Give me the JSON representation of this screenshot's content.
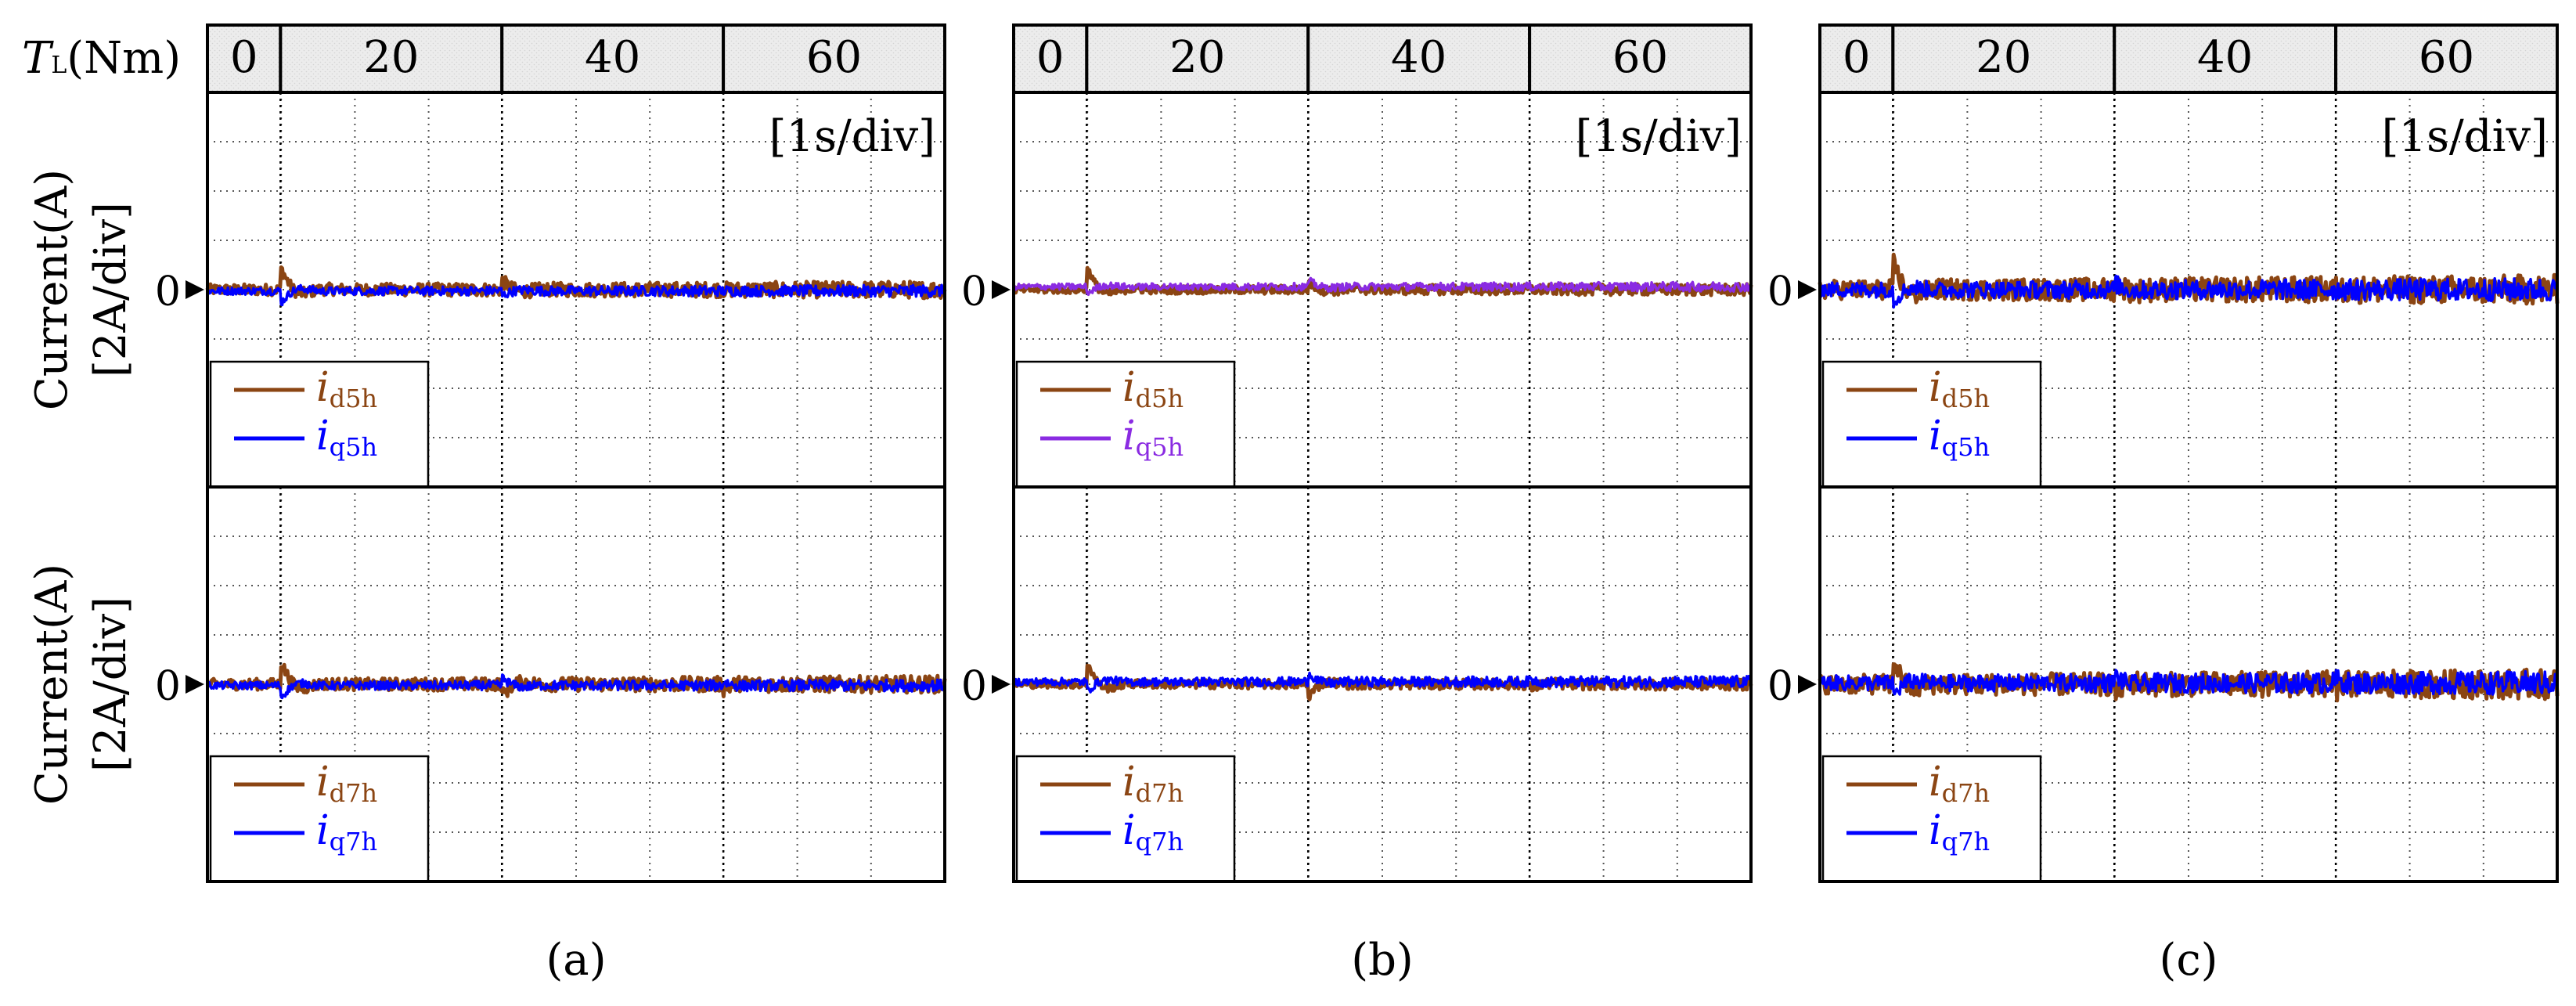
{
  "figure": {
    "torque_label_main": "T",
    "torque_label_sub": "L",
    "torque_label_unit": "(Nm)",
    "time_div_label": "[1s/div]",
    "ylabel_line1": "Current(A)",
    "ylabel_line2": "[2A/div]",
    "zero_label": "0"
  },
  "colors": {
    "d_axis": "#8B4513",
    "q_axis": "#0000FF",
    "q_axis_variant_b": "#8A2BE2",
    "torque_band_fill": "#ececec"
  },
  "chart_data": [
    {
      "type": "line",
      "panel": "(a)",
      "title": "(a)",
      "torque_segments": [
        {
          "label": "0",
          "t_start": 0.0,
          "t_end": 0.33
        },
        {
          "label": "20",
          "t_start": 0.33,
          "t_end": 1.33
        },
        {
          "label": "40",
          "t_start": 1.33,
          "t_end": 2.33
        },
        {
          "label": "60",
          "t_start": 2.33,
          "t_end": 3.33
        }
      ],
      "x_unit": "1s/div",
      "x_range": [
        0,
        3.33
      ],
      "subplots": [
        {
          "ylabel": "Current(A) [2A/div]",
          "ylim": [
            -8,
            8
          ],
          "legend": [
            "i_d5h",
            "i_q5h"
          ],
          "series": [
            {
              "name": "d5h",
              "legend_sub": "d5h",
              "color_key": "d_axis",
              "steady_value": 0.0,
              "events": [
                [
                  0.33,
                  0.9
                ],
                [
                  1.33,
                  0.35
                ]
              ],
              "ripple": 0.22
            },
            {
              "name": "q5h",
              "legend_sub": "q5h",
              "color_key": "q_axis",
              "steady_value": -0.05,
              "events": [
                [
                  0.33,
                  -0.5
                ],
                [
                  1.33,
                  -0.2
                ]
              ],
              "ripple": 0.15
            }
          ]
        },
        {
          "ylabel": "Current(A) [2A/div]",
          "ylim": [
            -8,
            8
          ],
          "legend": [
            "i_d7h",
            "i_q7h"
          ],
          "series": [
            {
              "name": "d7h",
              "legend_sub": "d7h",
              "color_key": "d_axis",
              "steady_value": 0.0,
              "events": [
                [
                  0.33,
                  0.9
                ],
                [
                  1.33,
                  -0.45
                ],
                [
                  2.33,
                  -0.2
                ]
              ],
              "ripple": 0.22
            },
            {
              "name": "q7h",
              "legend_sub": "q7h",
              "color_key": "q_axis",
              "steady_value": -0.05,
              "events": [
                [
                  0.33,
                  -0.5
                ],
                [
                  1.33,
                  0.3
                ],
                [
                  2.33,
                  0.15
                ]
              ],
              "ripple": 0.15
            }
          ]
        }
      ]
    },
    {
      "type": "line",
      "panel": "(b)",
      "title": "(b)",
      "torque_segments": [
        {
          "label": "0",
          "t_start": 0.0,
          "t_end": 0.33
        },
        {
          "label": "20",
          "t_start": 0.33,
          "t_end": 1.33
        },
        {
          "label": "40",
          "t_start": 1.33,
          "t_end": 2.33
        },
        {
          "label": "60",
          "t_start": 2.33,
          "t_end": 3.33
        }
      ],
      "x_unit": "1s/div",
      "x_range": [
        0,
        3.33
      ],
      "subplots": [
        {
          "ylabel": "",
          "ylim": [
            -8,
            8
          ],
          "legend": [
            "i_d5h",
            "i_q5h"
          ],
          "series": [
            {
              "name": "d5h",
              "legend_sub": "d5h",
              "color_key": "d_axis",
              "steady_value": 0.0,
              "events": [
                [
                  0.33,
                  0.9
                ],
                [
                  1.33,
                  0.3
                ]
              ],
              "ripple": 0.15
            },
            {
              "name": "q5h",
              "legend_sub": "q5h",
              "color_key": "q_axis_variant_b",
              "steady_value": 0.12,
              "events": [
                [
                  0.33,
                  -0.3
                ],
                [
                  1.33,
                  0.25
                ]
              ],
              "ripple": 0.12
            }
          ]
        },
        {
          "ylabel": "",
          "ylim": [
            -8,
            8
          ],
          "legend": [
            "i_d7h",
            "i_q7h"
          ],
          "series": [
            {
              "name": "d7h",
              "legend_sub": "d7h",
              "color_key": "d_axis",
              "steady_value": 0.0,
              "events": [
                [
                  0.33,
                  0.9
                ],
                [
                  1.33,
                  -0.5
                ],
                [
                  2.33,
                  -0.2
                ]
              ],
              "ripple": 0.15
            },
            {
              "name": "q7h",
              "legend_sub": "q7h",
              "color_key": "q_axis",
              "steady_value": 0.1,
              "events": [
                [
                  0.33,
                  -0.4
                ],
                [
                  1.33,
                  0.35
                ],
                [
                  2.33,
                  0.1
                ]
              ],
              "ripple": 0.15
            }
          ]
        }
      ]
    },
    {
      "type": "line",
      "panel": "(c)",
      "title": "(c)",
      "torque_segments": [
        {
          "label": "0",
          "t_start": 0.0,
          "t_end": 0.33
        },
        {
          "label": "20",
          "t_start": 0.33,
          "t_end": 1.33
        },
        {
          "label": "40",
          "t_start": 1.33,
          "t_end": 2.33
        },
        {
          "label": "60",
          "t_start": 2.33,
          "t_end": 3.33
        }
      ],
      "x_unit": "1s/div",
      "x_range": [
        0,
        3.33
      ],
      "subplots": [
        {
          "ylabel": "",
          "ylim": [
            -8,
            8
          ],
          "legend": [
            "i_d5h",
            "i_q5h"
          ],
          "series": [
            {
              "name": "d5h",
              "legend_sub": "d5h",
              "color_key": "d_axis",
              "steady_value": 0.0,
              "events": [
                [
                  0.33,
                  1.1
                ],
                [
                  1.33,
                  0.3
                ]
              ],
              "ripple": 0.38
            },
            {
              "name": "q5h",
              "legend_sub": "q5h",
              "color_key": "q_axis",
              "steady_value": 0.0,
              "events": [
                [
                  0.33,
                  -0.5
                ],
                [
                  1.33,
                  0.25
                ]
              ],
              "ripple": 0.3
            }
          ]
        },
        {
          "ylabel": "",
          "ylim": [
            -8,
            8
          ],
          "legend": [
            "i_d7h",
            "i_q7h"
          ],
          "series": [
            {
              "name": "d7h",
              "legend_sub": "d7h",
              "color_key": "d_axis",
              "steady_value": 0.0,
              "events": [
                [
                  0.33,
                  1.0
                ],
                [
                  1.33,
                  -0.4
                ],
                [
                  2.33,
                  -0.2
                ]
              ],
              "ripple": 0.38
            },
            {
              "name": "q7h",
              "legend_sub": "q7h",
              "color_key": "q_axis",
              "steady_value": 0.05,
              "events": [
                [
                  0.33,
                  -0.5
                ],
                [
                  1.33,
                  0.3
                ],
                [
                  2.33,
                  0.15
                ]
              ],
              "ripple": 0.3
            }
          ]
        }
      ]
    }
  ]
}
